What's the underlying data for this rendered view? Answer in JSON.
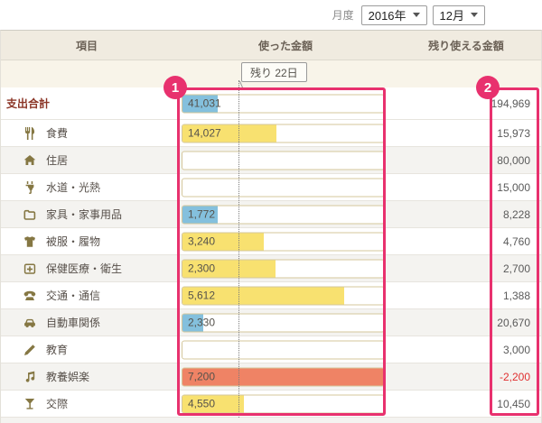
{
  "toolbar": {
    "month_label": "月度",
    "year_value": "2016年",
    "month_value": "12月"
  },
  "table": {
    "headers": {
      "item": "項目",
      "spent": "使った金額",
      "remaining": "残り使える金額"
    },
    "days_remaining_tooltip": "残り 22日",
    "rows": [
      {
        "icon": "",
        "label": "支出合計",
        "spent": "41,031",
        "pct": 17.4,
        "color": "blue",
        "remaining": "194,969",
        "total": true
      },
      {
        "icon": "utensils-icon",
        "label": "食費",
        "spent": "14,027",
        "pct": 46.8,
        "color": "yellow",
        "remaining": "15,973"
      },
      {
        "icon": "house-icon",
        "label": "住居",
        "spent": "",
        "pct": 0,
        "color": "",
        "remaining": "80,000"
      },
      {
        "icon": "plug-icon",
        "label": "水道・光熱",
        "spent": "",
        "pct": 0,
        "color": "",
        "remaining": "15,000"
      },
      {
        "icon": "folder-icon",
        "label": "家具・家事用品",
        "spent": "1,772",
        "pct": 17.7,
        "color": "blue",
        "remaining": "8,228"
      },
      {
        "icon": "tshirt-icon",
        "label": "被服・履物",
        "spent": "3,240",
        "pct": 40.5,
        "color": "yellow",
        "remaining": "4,760"
      },
      {
        "icon": "firstaid-icon",
        "label": "保健医療・衛生",
        "spent": "2,300",
        "pct": 46.0,
        "color": "yellow",
        "remaining": "2,700"
      },
      {
        "icon": "phone-icon",
        "label": "交通・通信",
        "spent": "5,612",
        "pct": 80.2,
        "color": "yellow",
        "remaining": "1,388"
      },
      {
        "icon": "car-icon",
        "label": "自動車関係",
        "spent": "2,330",
        "pct": 10.1,
        "color": "blue",
        "remaining": "20,670"
      },
      {
        "icon": "pencil-icon",
        "label": "教育",
        "spent": "",
        "pct": 0,
        "color": "",
        "remaining": "3,000"
      },
      {
        "icon": "music-note-icon",
        "label": "教養娯楽",
        "spent": "7,200",
        "pct": 100,
        "color": "red",
        "remaining": "-2,200",
        "negative": true
      },
      {
        "icon": "cocktail-icon",
        "label": "交際",
        "spent": "4,550",
        "pct": 30.3,
        "color": "yellow",
        "remaining": "10,450"
      }
    ]
  },
  "annotations": {
    "badge1": "1",
    "badge2": "2"
  },
  "colors": {
    "blue": "#84c0dd",
    "yellow": "#f8e170",
    "red": "#ef8365",
    "annotation_pink": "#e8316e",
    "icon_olive": "#857743",
    "negative_red": "#e03030"
  }
}
